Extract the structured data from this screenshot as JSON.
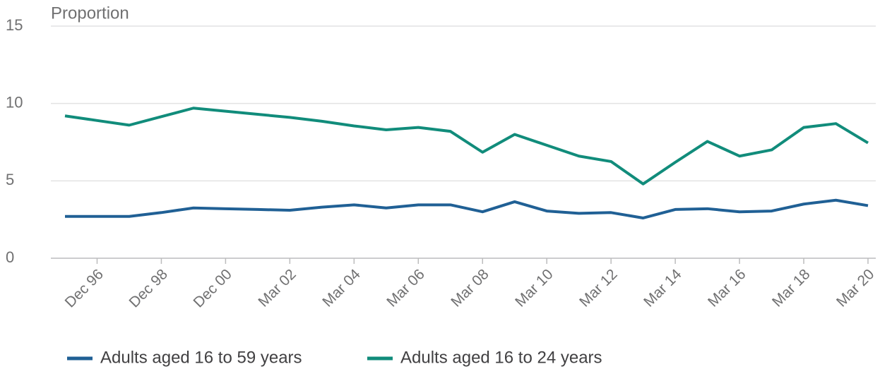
{
  "chart_data": {
    "type": "line",
    "y_label": "Proportion",
    "categories": [
      null,
      "Dec 96",
      null,
      "Dec 98",
      null,
      "Dec 00",
      null,
      "Mar 02",
      null,
      "Mar 04",
      null,
      "Mar 06",
      null,
      "Mar 08",
      null,
      "Mar 10",
      null,
      "Mar 12",
      null,
      "Mar 14",
      null,
      "Mar 16",
      null,
      "Mar 18",
      null,
      "Mar 20"
    ],
    "series": [
      {
        "name": "Adults aged 16 to 59 years",
        "color": "#206095",
        "values": [
          2.7,
          2.7,
          2.7,
          2.95,
          3.25,
          3.2,
          3.15,
          3.1,
          3.3,
          3.45,
          3.25,
          3.45,
          3.45,
          3.0,
          3.65,
          3.05,
          2.9,
          2.95,
          2.6,
          3.15,
          3.2,
          3.0,
          3.05,
          3.5,
          3.75,
          3.4
        ]
      },
      {
        "name": "Adults aged 16 to 24 years",
        "color": "#118c7b",
        "values": [
          9.2,
          8.9,
          8.6,
          9.15,
          9.7,
          9.5,
          9.3,
          9.1,
          8.85,
          8.55,
          8.3,
          8.45,
          8.2,
          6.85,
          8.0,
          7.3,
          6.6,
          6.25,
          4.8,
          6.2,
          7.55,
          6.6,
          7.0,
          8.45,
          8.7,
          7.45
        ]
      }
    ],
    "ylim": [
      0,
      15
    ],
    "yticks": [
      0,
      5,
      10,
      15
    ],
    "grid": true,
    "legend": "bottom"
  }
}
